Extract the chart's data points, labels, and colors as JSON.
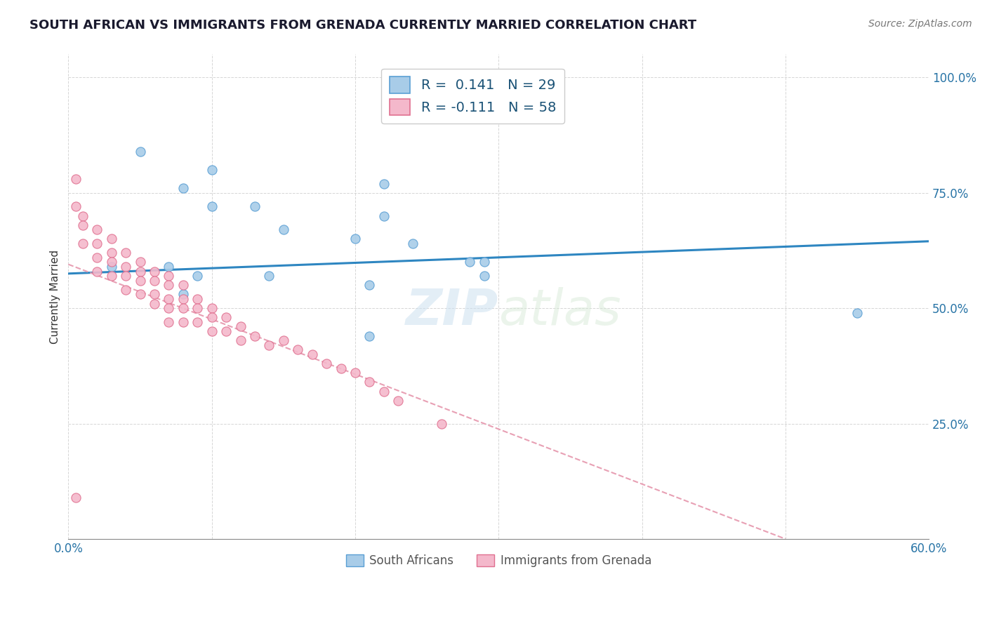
{
  "title": "SOUTH AFRICAN VS IMMIGRANTS FROM GRENADA CURRENTLY MARRIED CORRELATION CHART",
  "source": "Source: ZipAtlas.com",
  "ylabel": "Currently Married",
  "xmin": 0.0,
  "xmax": 0.6,
  "ymin": 0.0,
  "ymax": 1.05,
  "x_ticks": [
    0.0,
    0.1,
    0.2,
    0.3,
    0.4,
    0.5,
    0.6
  ],
  "x_tick_labels": [
    "0.0%",
    "",
    "",
    "",
    "",
    "",
    "60.0%"
  ],
  "y_ticks": [
    0.0,
    0.25,
    0.5,
    0.75,
    1.0
  ],
  "y_tick_labels": [
    "",
    "25.0%",
    "50.0%",
    "75.0%",
    "100.0%"
  ],
  "color_blue": "#a8cce8",
  "color_blue_edge": "#5a9fd4",
  "color_blue_line": "#2e86c1",
  "color_pink": "#f4b8cb",
  "color_pink_edge": "#e07090",
  "color_pink_line": "#e8a0b4",
  "watermark_color": "#cce0f0",
  "legend_label1": "South Africans",
  "legend_label2": "Immigrants from Grenada",
  "blue_scatter_x": [
    0.05,
    0.1,
    0.08,
    0.1,
    0.13,
    0.15,
    0.2,
    0.22,
    0.22,
    0.24,
    0.28,
    0.29,
    0.29,
    0.03,
    0.07,
    0.09,
    0.14,
    0.21,
    0.55,
    0.21,
    0.08
  ],
  "blue_scatter_y": [
    0.84,
    0.8,
    0.76,
    0.72,
    0.72,
    0.67,
    0.65,
    0.77,
    0.7,
    0.64,
    0.6,
    0.6,
    0.57,
    0.59,
    0.59,
    0.57,
    0.57,
    0.55,
    0.49,
    0.44,
    0.53
  ],
  "pink_scatter_x": [
    0.005,
    0.005,
    0.01,
    0.01,
    0.01,
    0.02,
    0.02,
    0.02,
    0.02,
    0.03,
    0.03,
    0.03,
    0.03,
    0.04,
    0.04,
    0.04,
    0.04,
    0.05,
    0.05,
    0.05,
    0.05,
    0.06,
    0.06,
    0.06,
    0.06,
    0.07,
    0.07,
    0.07,
    0.07,
    0.07,
    0.08,
    0.08,
    0.08,
    0.08,
    0.09,
    0.09,
    0.09,
    0.1,
    0.1,
    0.1,
    0.11,
    0.11,
    0.12,
    0.12,
    0.13,
    0.14,
    0.15,
    0.16,
    0.17,
    0.18,
    0.19,
    0.2,
    0.21,
    0.22,
    0.23,
    0.26,
    0.005
  ],
  "pink_scatter_y": [
    0.78,
    0.72,
    0.7,
    0.68,
    0.64,
    0.67,
    0.64,
    0.61,
    0.58,
    0.65,
    0.62,
    0.6,
    0.57,
    0.62,
    0.59,
    0.57,
    0.54,
    0.6,
    0.58,
    0.56,
    0.53,
    0.58,
    0.56,
    0.53,
    0.51,
    0.57,
    0.55,
    0.52,
    0.5,
    0.47,
    0.55,
    0.52,
    0.5,
    0.47,
    0.52,
    0.5,
    0.47,
    0.5,
    0.48,
    0.45,
    0.48,
    0.45,
    0.46,
    0.43,
    0.44,
    0.42,
    0.43,
    0.41,
    0.4,
    0.38,
    0.37,
    0.36,
    0.34,
    0.32,
    0.3,
    0.25,
    0.09
  ],
  "blue_line_x": [
    0.0,
    0.6
  ],
  "blue_line_y": [
    0.575,
    0.645
  ],
  "pink_line_x": [
    0.0,
    0.5
  ],
  "pink_line_y": [
    0.595,
    0.0
  ]
}
